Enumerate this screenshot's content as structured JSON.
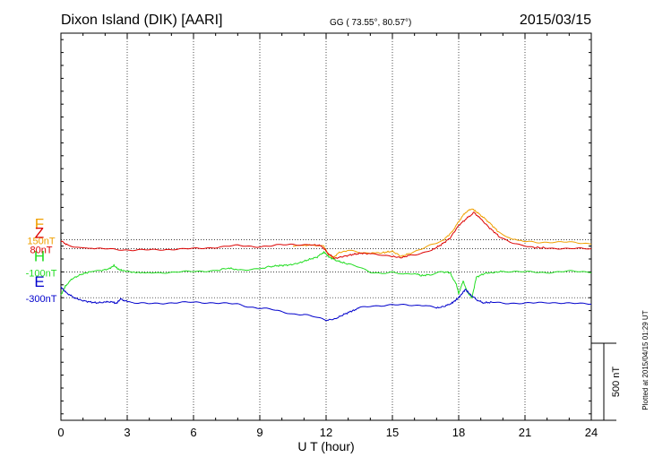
{
  "header": {
    "station": "Dixon Island (DIK)  [AARI]",
    "coords": "GG ( 73.55°,  80.57°)",
    "date": "2015/03/15"
  },
  "side_note": "Plotted at 2015/04/15 01:29 UT",
  "scale_label": "500 nT",
  "chart_data": {
    "type": "line",
    "xlabel": "U T (hour)",
    "xlim": [
      0,
      24
    ],
    "xticks": [
      "0",
      "3",
      "6",
      "9",
      "12",
      "15",
      "18",
      "21",
      "24"
    ],
    "ylim_nT": [
      -1250,
      1750
    ],
    "grid": "dotted",
    "series": [
      {
        "name": "F",
        "baseline_label": "150nT",
        "baseline_nT": 150,
        "color": "#f0a000",
        "x": [
          10.5,
          11.0,
          11.4,
          11.9,
          12.1,
          12.3,
          12.6,
          13.0,
          13.5,
          14.0,
          14.6,
          15.0,
          15.4,
          15.8,
          16.3,
          16.8,
          17.3,
          17.7,
          18.0,
          18.3,
          18.6,
          18.8,
          19.1,
          19.4,
          19.8,
          20.3,
          21.0,
          21.5,
          22.0,
          23.0,
          24.0
        ],
        "y": [
          -50,
          -45,
          -40,
          -55,
          -110,
          -140,
          -100,
          -85,
          -100,
          -105,
          -100,
          -90,
          -130,
          -105,
          -75,
          -40,
          -5,
          60,
          140,
          210,
          240,
          215,
          175,
          130,
          60,
          10,
          -15,
          -20,
          -20,
          -20,
          -30
        ]
      },
      {
        "name": "H",
        "baseline_label": "-100nT",
        "baseline_nT": -100,
        "color": "#22dd22",
        "x": [
          0.0,
          0.2,
          0.5,
          0.9,
          1.3,
          1.8,
          2.2,
          2.4,
          2.6,
          2.8,
          3.2,
          4.0,
          5.0,
          6.0,
          7.0,
          7.6,
          8.0,
          9.0,
          9.6,
          10.0,
          10.4,
          10.8,
          11.2,
          11.6,
          11.9,
          12.1,
          12.3,
          12.6,
          13.0,
          13.5,
          14.0,
          14.5,
          15.0,
          15.5,
          16.0,
          16.3,
          16.7,
          17.2,
          17.6,
          17.9,
          18.0,
          18.2,
          18.4,
          18.6,
          18.8,
          19.2,
          19.6,
          20.0,
          21.0,
          22.0,
          23.0,
          24.0
        ],
        "y": [
          -180,
          -110,
          -55,
          -20,
          0,
          10,
          25,
          50,
          20,
          10,
          0,
          -5,
          -5,
          5,
          10,
          30,
          15,
          25,
          45,
          50,
          55,
          70,
          95,
          115,
          155,
          120,
          100,
          80,
          60,
          35,
          0,
          -10,
          -5,
          -20,
          -10,
          -30,
          -20,
          0,
          -5,
          -100,
          -170,
          -70,
          -160,
          -200,
          -40,
          -10,
          -5,
          5,
          0,
          -5,
          5,
          0
        ]
      },
      {
        "name": "E",
        "baseline_label": "-300nT",
        "baseline_nT": -300,
        "color": "#0000cc",
        "x": [
          0.0,
          0.2,
          0.5,
          0.8,
          1.2,
          1.6,
          2.0,
          2.3,
          2.5,
          2.7,
          3.0,
          3.5,
          4.0,
          5.0,
          6.0,
          7.0,
          8.0,
          8.5,
          9.0,
          9.5,
          10.0,
          10.5,
          11.0,
          11.5,
          12.0,
          12.4,
          12.8,
          13.2,
          13.5,
          14.0,
          15.0,
          16.0,
          16.5,
          17.0,
          17.4,
          17.7,
          17.9,
          18.1,
          18.3,
          18.5,
          18.8,
          19.1,
          19.5,
          20.0,
          21.0,
          22.0,
          23.0,
          24.0
        ],
        "y": [
          85,
          45,
          10,
          -15,
          -30,
          -40,
          -35,
          -30,
          -45,
          -10,
          -30,
          -45,
          -45,
          -40,
          -35,
          -40,
          -50,
          -70,
          -80,
          -90,
          -110,
          -125,
          -130,
          -150,
          -175,
          -165,
          -130,
          -100,
          -80,
          -65,
          -55,
          -60,
          -55,
          -80,
          -65,
          -40,
          -15,
          20,
          65,
          30,
          -15,
          -40,
          -35,
          -40,
          -45,
          -35,
          -45,
          -45
        ]
      },
      {
        "name": "Z",
        "baseline_label": "80nT",
        "baseline_nT": 80,
        "color": "#dd0000",
        "x": [
          0.0,
          0.3,
          0.8,
          1.5,
          2.5,
          3.0,
          3.5,
          4.0,
          5.0,
          6.0,
          7.0,
          8.0,
          9.0,
          9.5,
          10.0,
          10.5,
          11.0,
          11.5,
          11.8,
          12.1,
          12.4,
          12.8,
          13.2,
          13.6,
          14.0,
          14.5,
          15.0,
          15.4,
          15.8,
          16.3,
          16.8,
          17.2,
          17.6,
          18.0,
          18.4,
          18.7,
          19.0,
          19.4,
          19.8,
          20.3,
          20.8,
          21.3,
          22.0,
          23.0,
          24.0
        ],
        "y": [
          60,
          30,
          10,
          0,
          -5,
          -10,
          -10,
          -10,
          -5,
          0,
          10,
          25,
          15,
          20,
          30,
          35,
          30,
          30,
          20,
          -40,
          -75,
          -60,
          -45,
          -35,
          -40,
          -45,
          -60,
          -70,
          -50,
          -35,
          -10,
          30,
          80,
          180,
          240,
          280,
          230,
          160,
          100,
          55,
          25,
          10,
          5,
          0,
          0
        ]
      }
    ]
  }
}
